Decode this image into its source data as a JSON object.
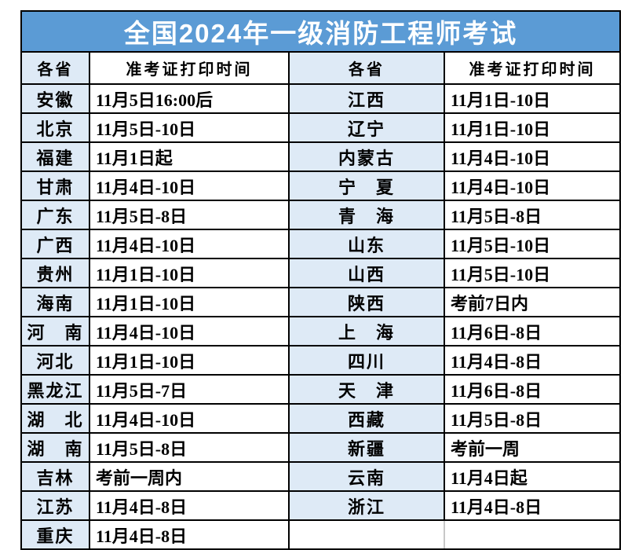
{
  "title": "全国2024年一级消防工程师考试",
  "columns": [
    "各省",
    "准考证打印时间",
    "各省",
    "准考证打印时间"
  ],
  "colors": {
    "title_bg": "#5B9BD5",
    "title_text": "#FFFFFF",
    "province_bg": "#DEEAF6",
    "time_bg": "#FFFFFF",
    "border": "#000000",
    "empty_divider": "#C8C8C8",
    "body_text": "#000000"
  },
  "rows": [
    {
      "left_province": "安徽",
      "left_time": "11月5日16:00后",
      "right_province": "江西",
      "right_time": "11月1日-10日"
    },
    {
      "left_province": "北京",
      "left_time": "11月5日-10日",
      "right_province": "辽宁",
      "right_time": "11月1日-10日"
    },
    {
      "left_province": "福建",
      "left_time": "11月1日起",
      "right_province": "内蒙古",
      "right_time": "11月4日-10日"
    },
    {
      "left_province": "甘肃",
      "left_time": "11月4日-10日",
      "right_province": "宁　夏",
      "right_time": "11月4日-10日"
    },
    {
      "left_province": "广东",
      "left_time": "11月5日-8日",
      "right_province": "青　海",
      "right_time": "11月5日-8日"
    },
    {
      "left_province": "广西",
      "left_time": "11月4日-10日",
      "right_province": "山东",
      "right_time": "11月5日-10日"
    },
    {
      "left_province": "贵州",
      "left_time": "11月1日-10日",
      "right_province": "山西",
      "right_time": "11月5日-10日"
    },
    {
      "left_province": "海南",
      "left_time": "11月1日-10日",
      "right_province": "陕西",
      "right_time": "考前7日内"
    },
    {
      "left_province": "河　南",
      "left_time": "11月4日-10日",
      "right_province": "上　海",
      "right_time": "11月6日-8日"
    },
    {
      "left_province": "河北",
      "left_time": "11月1日-10日",
      "right_province": "四川",
      "right_time": "11月4日-8日"
    },
    {
      "left_province": "黑龙江",
      "left_time": "11月5日-7日",
      "right_province": "天　津",
      "right_time": "11月6日-8日"
    },
    {
      "left_province": "湖　北",
      "left_time": "11月4日-10日",
      "right_province": "西藏",
      "right_time": "11月5日-8日"
    },
    {
      "left_province": "湖　南",
      "left_time": "11月5日-8日",
      "right_province": "新疆",
      "right_time": "考前一周"
    },
    {
      "left_province": "吉林",
      "left_time": "考前一周内",
      "right_province": "云南",
      "right_time": "11月4日起"
    },
    {
      "left_province": "江苏",
      "left_time": "11月4日-8日",
      "right_province": "浙江",
      "right_time": "11月4日-8日"
    },
    {
      "left_province": "重庆",
      "left_time": "11月4日-8日",
      "right_province": "",
      "right_time": ""
    }
  ]
}
